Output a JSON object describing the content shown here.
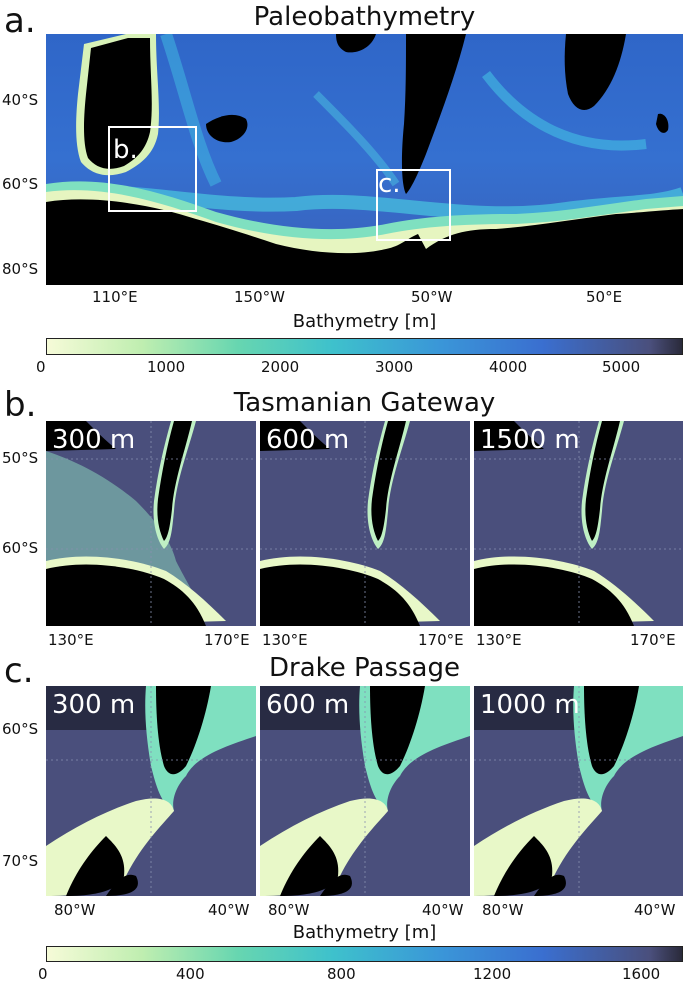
{
  "panel_a": {
    "letter": "a.",
    "title": "Paleobathymetry",
    "lat_labels": [
      "40°S",
      "60°S",
      "80°S"
    ],
    "lon_labels": [
      "110°E",
      "150°W",
      "50°W",
      "50°E"
    ],
    "box_labels": [
      "b.",
      "c."
    ]
  },
  "colorbar_a": {
    "label": "Bathymetry [m]",
    "ticks": [
      "0",
      "1000",
      "2000",
      "3000",
      "4000",
      "5000"
    ],
    "max": 5600
  },
  "panel_b": {
    "letter": "b.",
    "title": "Tasmanian Gateway",
    "lat_labels": [
      "50°S",
      "60°S"
    ],
    "lon_labels": [
      "130°E",
      "170°E"
    ],
    "depths": [
      "300 m",
      "600 m",
      "1500 m"
    ]
  },
  "panel_c": {
    "letter": "c.",
    "title": "Drake Passage",
    "lat_labels": [
      "60°S",
      "70°S"
    ],
    "lon_labels": [
      "80°W",
      "40°W"
    ],
    "depths": [
      "300 m",
      "600 m",
      "1000 m"
    ]
  },
  "colorbar_c": {
    "label": "Bathymetry [m]",
    "ticks": [
      "0",
      "400",
      "800",
      "1200",
      "1600"
    ],
    "max": 1700
  },
  "colors": {
    "land": "#000000",
    "deep": "#4a4f7c",
    "shelf": "#f2f7c8",
    "mid": "#5fd0c0",
    "blue": "#3a6fd0"
  }
}
